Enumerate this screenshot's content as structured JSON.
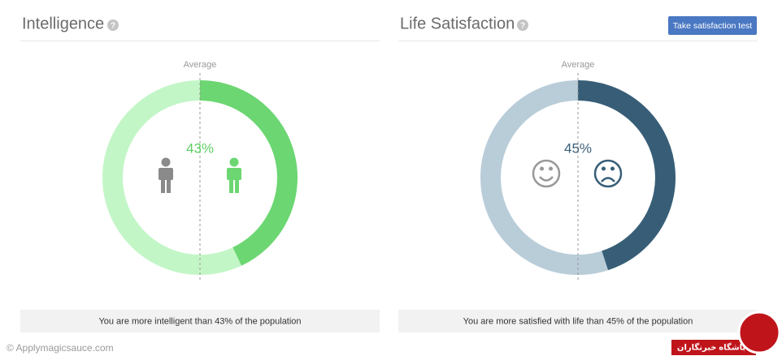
{
  "panels": [
    {
      "title": "Intelligence",
      "help": "?",
      "average_label": "Average",
      "value": 43,
      "value_label": "43%",
      "caption": "You are more intelligent than 43% of the population",
      "light": "#c3f6c7",
      "dark": "#6cd672",
      "text_color": "#5dcf63"
    },
    {
      "title": "Life Satisfaction",
      "help": "?",
      "button": "Take satisfaction test",
      "average_label": "Average",
      "value": 45,
      "value_label": "45%",
      "caption": "You are more satisfied with life than 45% of the population",
      "light": "#b9cdd9",
      "dark": "#385e77",
      "text_color": "#3b5f78"
    }
  ],
  "watermark": "© Applymagicsauce.com",
  "logo_text": "باشگاه خبرنگاران"
}
